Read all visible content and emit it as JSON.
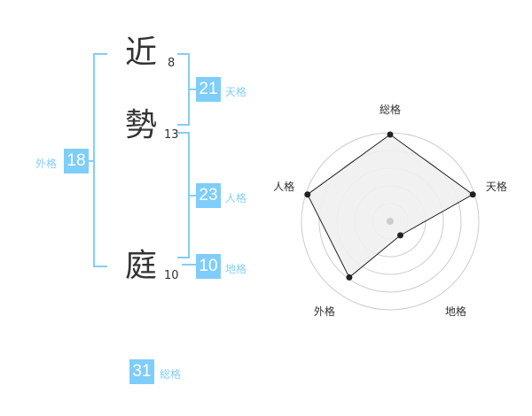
{
  "name": [
    {
      "char": "近",
      "strokes": "8"
    },
    {
      "char": "勢",
      "strokes": "13"
    },
    {
      "char": "庭",
      "strokes": "10"
    }
  ],
  "fortunes": {
    "tenkaku": {
      "label": "天格",
      "value": "21"
    },
    "jinkaku": {
      "label": "人格",
      "value": "23"
    },
    "chikaku": {
      "label": "地格",
      "value": "10"
    },
    "gaikaku": {
      "label": "外格",
      "value": "18"
    },
    "soukaku": {
      "label": "総格",
      "value": "31"
    }
  },
  "colors": {
    "accent": "#7fcdfa",
    "label": "#86cdf5",
    "radar_fill": "#f0f0f0",
    "grid": "#cccccc"
  },
  "chart_data": {
    "type": "radar",
    "axes": [
      "総格",
      "天格",
      "地格",
      "外格",
      "人格"
    ],
    "values": [
      5,
      5,
      1,
      4,
      5
    ],
    "range": [
      0,
      5
    ],
    "rings": 5
  }
}
